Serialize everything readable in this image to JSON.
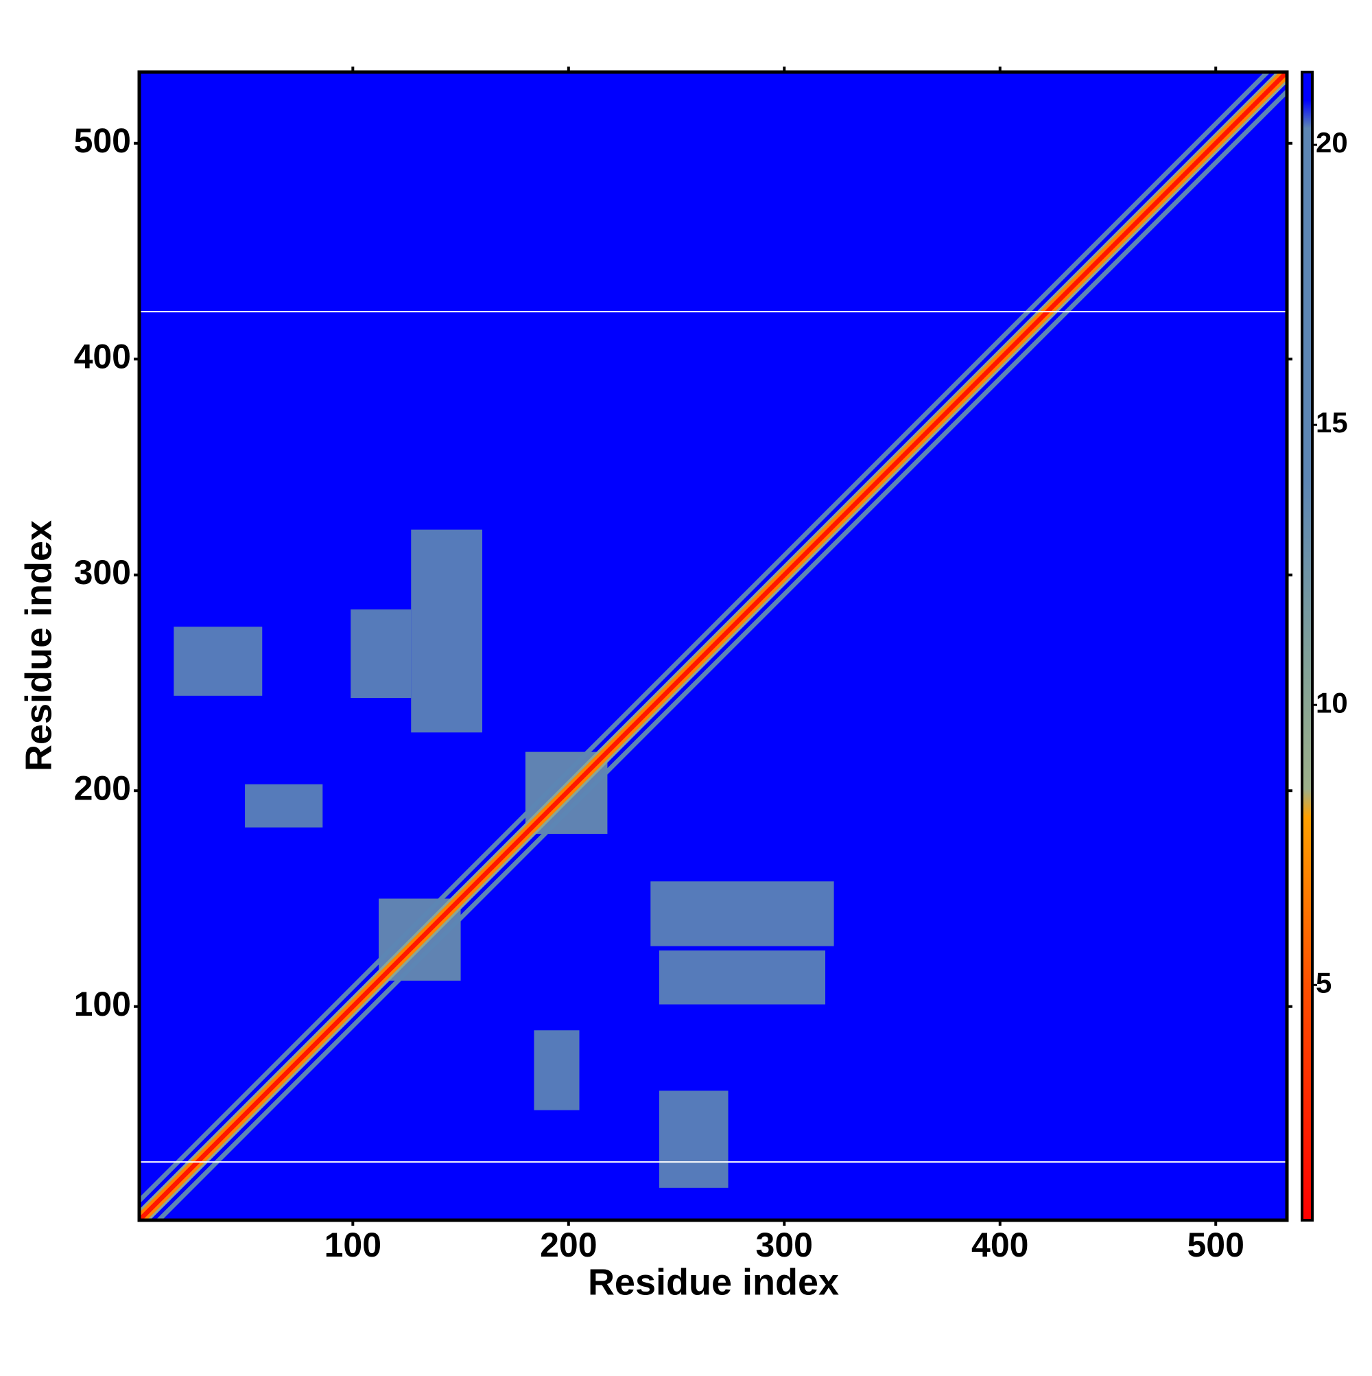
{
  "chart_data": {
    "type": "heatmap",
    "xlabel": "Residue index",
    "ylabel": "Residue index",
    "xlim": [
      1,
      533
    ],
    "ylim": [
      1,
      533
    ],
    "xticks": [
      100,
      200,
      300,
      400,
      500
    ],
    "yticks": [
      100,
      200,
      300,
      400,
      500
    ],
    "colorbar": {
      "lim": [
        0.8,
        21.3
      ],
      "ticks": [
        5,
        10,
        15,
        20
      ],
      "stops": [
        [
          0.8,
          "#ff0000"
        ],
        [
          5,
          "#ff5000"
        ],
        [
          8,
          "#ffa000"
        ],
        [
          8.5,
          "#9db08a"
        ],
        [
          11,
          "#7f9f9a"
        ],
        [
          14,
          "#5d86b4"
        ],
        [
          20.3,
          "#5d86b4"
        ],
        [
          20.8,
          "#0000ff"
        ],
        [
          21.3,
          "#0000ff"
        ]
      ]
    },
    "background_value": 21,
    "diagonal_bands": [
      {
        "offset": 9,
        "half_width": 1.5,
        "value": 16
      },
      {
        "offset": -9,
        "half_width": 1.5,
        "value": 16
      },
      {
        "offset": 0,
        "half_width": 5,
        "value": 10
      },
      {
        "offset": 0,
        "half_width": 3.5,
        "value": 7
      },
      {
        "offset": 0,
        "half_width": 1.5,
        "value": 2
      }
    ],
    "regions": [
      {
        "x": [
          112,
          150
        ],
        "y": [
          112,
          150
        ],
        "value": 13
      },
      {
        "x": [
          180,
          218
        ],
        "y": [
          180,
          218
        ],
        "value": 13
      },
      {
        "x": [
          99,
          127
        ],
        "y": [
          243,
          284
        ],
        "value": 18
      },
      {
        "x": [
          127,
          160
        ],
        "y": [
          227,
          321
        ],
        "value": 18
      },
      {
        "x": [
          238,
          323
        ],
        "y": [
          128,
          158
        ],
        "value": 18
      },
      {
        "x": [
          242,
          319
        ],
        "y": [
          101,
          126
        ],
        "value": 18
      },
      {
        "x": [
          17,
          58
        ],
        "y": [
          244,
          276
        ],
        "value": 19
      },
      {
        "x": [
          50,
          86
        ],
        "y": [
          183,
          203
        ],
        "value": 19
      },
      {
        "x": [
          184,
          205
        ],
        "y": [
          52,
          89
        ],
        "value": 19
      },
      {
        "x": [
          242,
          274
        ],
        "y": [
          16,
          61
        ],
        "value": 19
      }
    ],
    "blank_rows": [
      422,
      28
    ]
  }
}
